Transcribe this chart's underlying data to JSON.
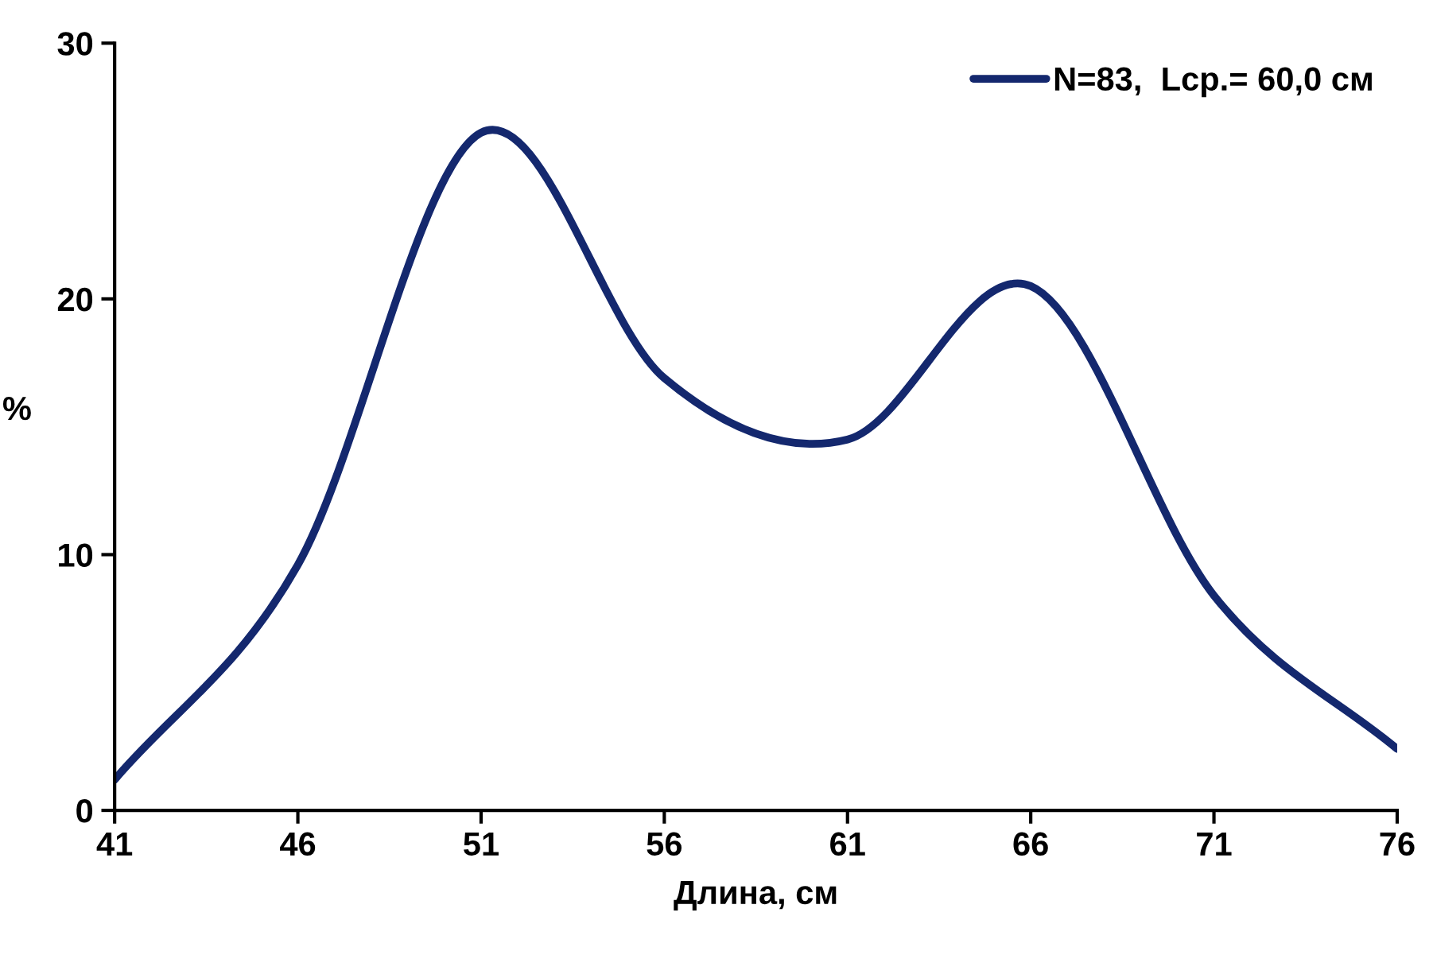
{
  "chart_data": {
    "type": "line",
    "xlabel": "Длина, см",
    "ylabel": "%",
    "x": [
      41,
      46,
      51,
      56,
      61,
      66,
      71,
      76
    ],
    "series": [
      {
        "name": "N=83,  Lср.= 60,0 см",
        "color": "#14286e",
        "values": [
          1.2,
          9.6,
          26.5,
          16.9,
          14.5,
          20.5,
          8.4,
          2.4
        ]
      }
    ],
    "xlim": [
      41,
      76
    ],
    "xticks": [
      41,
      46,
      51,
      56,
      61,
      66,
      71,
      76
    ],
    "ylim": [
      0,
      30
    ],
    "yticks": [
      0,
      10,
      20,
      30
    ],
    "grid": false,
    "legend": "top right",
    "marker": "none",
    "line_style": "solid"
  }
}
